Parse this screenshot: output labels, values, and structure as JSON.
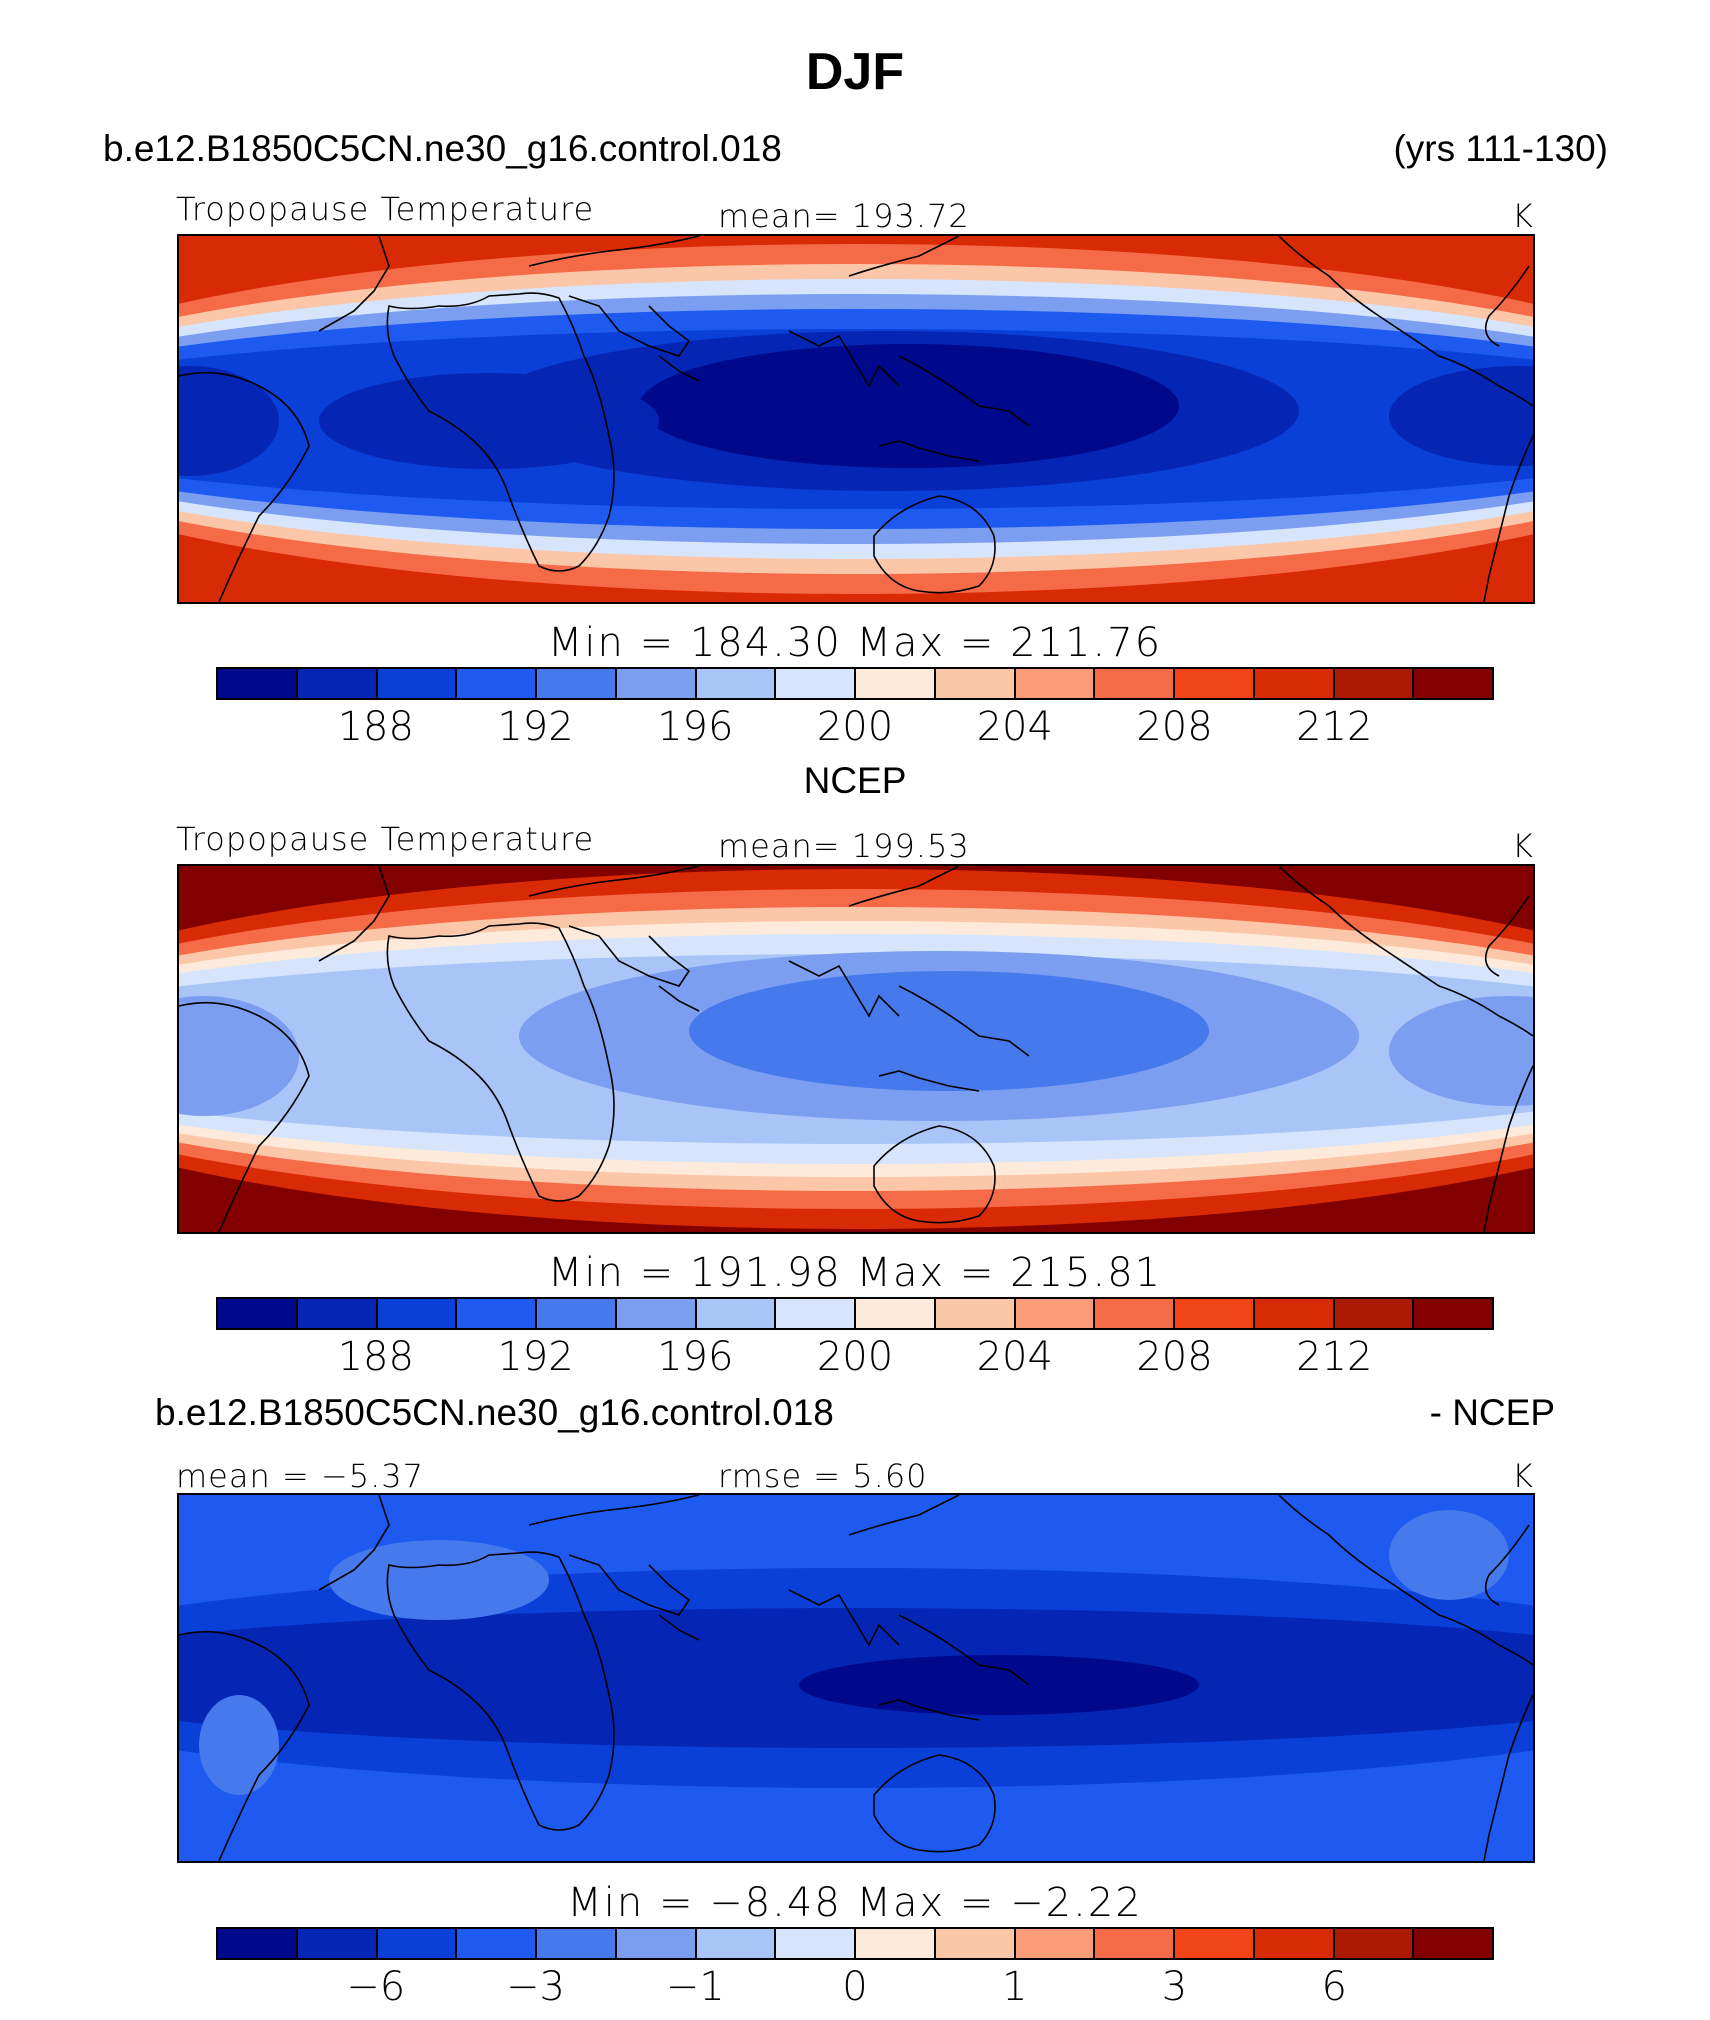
{
  "page": {
    "title": "DJF",
    "case_name": "b.e12.B1850C5CN.ne30_g16.control.018",
    "years": "(yrs 111-130)",
    "obs_title": "NCEP",
    "diff_case": "b.e12.B1850C5CN.ne30_g16.control.018",
    "diff_suffix": "- NCEP"
  },
  "colors": {
    "palette": [
      "#00088c",
      "#0526b4",
      "#0a3fd8",
      "#1e5aef",
      "#4679ec",
      "#7b9ef1",
      "#a9c4f7",
      "#d6e5fb",
      "#fdeadb",
      "#fcc6a9",
      "#f99c77",
      "#f66b47",
      "#f24419",
      "#d92a06",
      "#ac1a04",
      "#830000"
    ],
    "coast": "#000000"
  },
  "panels": [
    {
      "left_label": "Tropopause Temperature",
      "center_label": "mean= 193.72",
      "units": "K",
      "minmax": "Min = 184.30 Max = 211.76",
      "colorbar_ticks": [
        "188",
        "192",
        "196",
        "200",
        "204",
        "208",
        "212"
      ],
      "bands": [
        {
          "level": 13,
          "rx": 900,
          "ry": 200
        },
        {
          "level": 11,
          "rx": 900,
          "ry": 175
        },
        {
          "level": 9,
          "rx": 900,
          "ry": 155
        },
        {
          "level": 7,
          "rx": 900,
          "ry": 140
        },
        {
          "level": 5,
          "rx": 900,
          "ry": 125
        },
        {
          "level": 3,
          "rx": 900,
          "ry": 110
        },
        {
          "level": 2,
          "rx": 900,
          "ry": 90
        }
      ],
      "blobs": [
        {
          "level": 1,
          "cx": 710,
          "cy": 175,
          "rx": 410,
          "ry": 80
        },
        {
          "level": 0,
          "cx": 730,
          "cy": 170,
          "rx": 270,
          "ry": 62
        },
        {
          "level": 1,
          "cx": 310,
          "cy": 185,
          "rx": 170,
          "ry": 48
        },
        {
          "level": 1,
          "cx": 10,
          "cy": 185,
          "rx": 90,
          "ry": 55
        },
        {
          "level": 1,
          "cx": 1340,
          "cy": 180,
          "rx": 130,
          "ry": 50
        }
      ]
    },
    {
      "left_label": "Tropopause Temperature",
      "center_label": "mean= 199.53",
      "units": "K",
      "minmax": "Min = 191.98 Max = 215.81",
      "colorbar_ticks": [
        "188",
        "192",
        "196",
        "200",
        "204",
        "208",
        "212"
      ],
      "bands": [
        {
          "level": 15,
          "rx": 900,
          "ry": 205
        },
        {
          "level": 13,
          "rx": 900,
          "ry": 180
        },
        {
          "level": 11,
          "rx": 900,
          "ry": 160
        },
        {
          "level": 9,
          "rx": 900,
          "ry": 142
        },
        {
          "level": 8,
          "rx": 900,
          "ry": 128
        },
        {
          "level": 7,
          "rx": 900,
          "ry": 115
        },
        {
          "level": 6,
          "rx": 900,
          "ry": 95
        }
      ],
      "blobs": [
        {
          "level": 5,
          "cx": 760,
          "cy": 170,
          "rx": 420,
          "ry": 85
        },
        {
          "level": 4,
          "cx": 770,
          "cy": 165,
          "rx": 260,
          "ry": 60
        },
        {
          "level": 5,
          "cx": 25,
          "cy": 190,
          "rx": 95,
          "ry": 60
        },
        {
          "level": 5,
          "cx": 1330,
          "cy": 185,
          "rx": 120,
          "ry": 55
        }
      ]
    },
    {
      "left_label": "mean = −5.37",
      "center_label": "rmse = 5.60",
      "units": "K",
      "minmax": "Min = −8.48 Max = −2.22",
      "colorbar_ticks": [
        "−6",
        "−3",
        "−1",
        "0",
        "1",
        "3",
        "6"
      ],
      "bands": [
        {
          "level": 3,
          "rx": 900,
          "ry": 300
        },
        {
          "level": 2,
          "rx": 900,
          "ry": 110
        },
        {
          "level": 1,
          "rx": 860,
          "ry": 70
        }
      ],
      "blobs": [
        {
          "level": 0,
          "cx": 820,
          "cy": 190,
          "rx": 200,
          "ry": 30
        },
        {
          "level": 4,
          "cx": 60,
          "cy": 250,
          "rx": 40,
          "ry": 50
        },
        {
          "level": 4,
          "cx": 260,
          "cy": 85,
          "rx": 110,
          "ry": 40
        },
        {
          "level": 4,
          "cx": 1270,
          "cy": 60,
          "rx": 60,
          "ry": 45
        }
      ]
    }
  ],
  "chart_data": [
    {
      "type": "heatmap",
      "title": "Tropopause Temperature",
      "subtitle": "mean= 193.72",
      "units": "K",
      "min": 184.3,
      "max": 211.76,
      "mean": 193.72,
      "colorbar_ticks": [
        188,
        192,
        196,
        200,
        204,
        208,
        212
      ]
    },
    {
      "type": "heatmap",
      "title": "Tropopause Temperature",
      "subtitle": "mean= 199.53",
      "units": "K",
      "min": 191.98,
      "max": 215.81,
      "mean": 199.53,
      "colorbar_ticks": [
        188,
        192,
        196,
        200,
        204,
        208,
        212
      ]
    },
    {
      "type": "heatmap",
      "title": "",
      "units": "K",
      "mean": -5.37,
      "rmse": 5.6,
      "min": -8.48,
      "max": -2.22,
      "colorbar_ticks": [
        -6,
        -3,
        -1,
        0,
        1,
        3,
        6
      ]
    }
  ]
}
